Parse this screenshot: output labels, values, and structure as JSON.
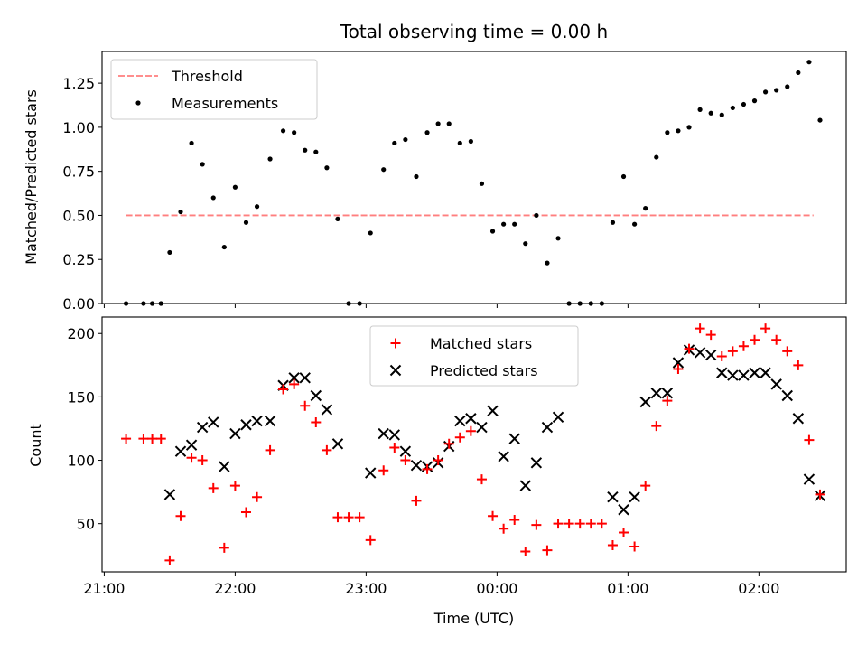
{
  "chart_data": [
    {
      "type": "scatter",
      "title": "Total observing time = 0.00 h",
      "xlabel": "",
      "ylabel": "Matched/Predicted stars",
      "ylim": [
        0,
        1.43
      ],
      "yticks": [
        "0.00",
        "0.25",
        "0.50",
        "0.75",
        "1.00",
        "1.25"
      ],
      "yticks_values": [
        0,
        0.25,
        0.5,
        0.75,
        1.0,
        1.25
      ],
      "xlim": [
        "21:00",
        "02:40"
      ],
      "legend_position": "upper left",
      "threshold": {
        "name": "Threshold",
        "y": 0.5,
        "x_range": [
          "21:10",
          "02:25"
        ],
        "color": "#ff7f7f",
        "style": "dashed"
      },
      "series": [
        {
          "name": "Measurements",
          "color": "#000000",
          "points": [
            [
              "21:10",
              0.0
            ],
            [
              "21:18",
              0.0
            ],
            [
              "21:22",
              0.0
            ],
            [
              "21:26",
              0.0
            ],
            [
              "21:30",
              0.29
            ],
            [
              "21:35",
              0.52
            ],
            [
              "21:40",
              0.91
            ],
            [
              "21:45",
              0.79
            ],
            [
              "21:50",
              0.6
            ],
            [
              "21:55",
              0.32
            ],
            [
              "22:00",
              0.66
            ],
            [
              "22:05",
              0.46
            ],
            [
              "22:10",
              0.55
            ],
            [
              "22:16",
              0.82
            ],
            [
              "22:22",
              0.98
            ],
            [
              "22:27",
              0.97
            ],
            [
              "22:32",
              0.87
            ],
            [
              "22:37",
              0.86
            ],
            [
              "22:42",
              0.77
            ],
            [
              "22:47",
              0.48
            ],
            [
              "22:52",
              0.0
            ],
            [
              "22:57",
              0.0
            ],
            [
              "23:02",
              0.4
            ],
            [
              "23:08",
              0.76
            ],
            [
              "23:13",
              0.91
            ],
            [
              "23:18",
              0.93
            ],
            [
              "23:23",
              0.72
            ],
            [
              "23:28",
              0.97
            ],
            [
              "23:33",
              1.02
            ],
            [
              "23:38",
              1.02
            ],
            [
              "23:43",
              0.91
            ],
            [
              "23:48",
              0.92
            ],
            [
              "23:53",
              0.68
            ],
            [
              "23:58",
              0.41
            ],
            [
              "00:03",
              0.45
            ],
            [
              "00:08",
              0.45
            ],
            [
              "00:13",
              0.34
            ],
            [
              "00:18",
              0.5
            ],
            [
              "00:23",
              0.23
            ],
            [
              "00:28",
              0.37
            ],
            [
              "00:33",
              0.0
            ],
            [
              "00:38",
              0.0
            ],
            [
              "00:43",
              0.0
            ],
            [
              "00:48",
              0.0
            ],
            [
              "00:53",
              0.46
            ],
            [
              "00:58",
              0.72
            ],
            [
              "01:03",
              0.45
            ],
            [
              "01:08",
              0.54
            ],
            [
              "01:13",
              0.83
            ],
            [
              "01:18",
              0.97
            ],
            [
              "01:23",
              0.98
            ],
            [
              "01:28",
              1.0
            ],
            [
              "01:33",
              1.1
            ],
            [
              "01:38",
              1.08
            ],
            [
              "01:43",
              1.07
            ],
            [
              "01:48",
              1.11
            ],
            [
              "01:53",
              1.13
            ],
            [
              "01:58",
              1.15
            ],
            [
              "02:03",
              1.2
            ],
            [
              "02:08",
              1.21
            ],
            [
              "02:13",
              1.23
            ],
            [
              "02:18",
              1.31
            ],
            [
              "02:23",
              1.37
            ],
            [
              "02:28",
              1.04
            ]
          ]
        }
      ]
    },
    {
      "type": "scatter",
      "xlabel": "Time (UTC)",
      "ylabel": "Count",
      "ylim": [
        12,
        213
      ],
      "yticks": [
        "50",
        "100",
        "150",
        "200"
      ],
      "yticks_values": [
        50,
        100,
        150,
        200
      ],
      "xlim": [
        "21:00",
        "02:40"
      ],
      "xticks": [
        "21:00",
        "22:00",
        "23:00",
        "00:00",
        "01:00",
        "02:00"
      ],
      "legend_position": "upper center",
      "series": [
        {
          "name": "Matched stars",
          "marker": "plus",
          "color": "#ff0000",
          "points": [
            [
              "21:10",
              117
            ],
            [
              "21:18",
              117
            ],
            [
              "21:22",
              117
            ],
            [
              "21:26",
              117
            ],
            [
              "21:30",
              21
            ],
            [
              "21:35",
              56
            ],
            [
              "21:40",
              102
            ],
            [
              "21:45",
              100
            ],
            [
              "21:50",
              78
            ],
            [
              "21:55",
              31
            ],
            [
              "22:00",
              80
            ],
            [
              "22:05",
              59
            ],
            [
              "22:10",
              71
            ],
            [
              "22:16",
              108
            ],
            [
              "22:22",
              156
            ],
            [
              "22:27",
              160
            ],
            [
              "22:32",
              143
            ],
            [
              "22:37",
              130
            ],
            [
              "22:42",
              108
            ],
            [
              "22:47",
              55
            ],
            [
              "22:52",
              55
            ],
            [
              "22:57",
              55
            ],
            [
              "23:02",
              37
            ],
            [
              "23:08",
              92
            ],
            [
              "23:13",
              110
            ],
            [
              "23:18",
              100
            ],
            [
              "23:23",
              68
            ],
            [
              "23:28",
              93
            ],
            [
              "23:33",
              100
            ],
            [
              "23:38",
              113
            ],
            [
              "23:43",
              118
            ],
            [
              "23:48",
              123
            ],
            [
              "23:53",
              85
            ],
            [
              "23:58",
              56
            ],
            [
              "00:03",
              46
            ],
            [
              "00:08",
              53
            ],
            [
              "00:13",
              28
            ],
            [
              "00:18",
              49
            ],
            [
              "00:23",
              29
            ],
            [
              "00:28",
              50
            ],
            [
              "00:33",
              50
            ],
            [
              "00:38",
              50
            ],
            [
              "00:43",
              50
            ],
            [
              "00:48",
              50
            ],
            [
              "00:53",
              33
            ],
            [
              "00:58",
              43
            ],
            [
              "01:03",
              32
            ],
            [
              "01:08",
              80
            ],
            [
              "01:13",
              127
            ],
            [
              "01:18",
              147
            ],
            [
              "01:23",
              172
            ],
            [
              "01:28",
              188
            ],
            [
              "01:33",
              204
            ],
            [
              "01:38",
              199
            ],
            [
              "01:43",
              182
            ],
            [
              "01:48",
              186
            ],
            [
              "01:53",
              190
            ],
            [
              "01:58",
              195
            ],
            [
              "02:03",
              204
            ],
            [
              "02:08",
              195
            ],
            [
              "02:13",
              186
            ],
            [
              "02:18",
              175
            ],
            [
              "02:23",
              116
            ],
            [
              "02:28",
              73
            ]
          ]
        },
        {
          "name": "Predicted stars",
          "marker": "x",
          "color": "#000000",
          "points": [
            [
              "21:30",
              73
            ],
            [
              "21:35",
              107
            ],
            [
              "21:40",
              112
            ],
            [
              "21:45",
              126
            ],
            [
              "21:50",
              130
            ],
            [
              "21:55",
              95
            ],
            [
              "22:00",
              121
            ],
            [
              "22:05",
              128
            ],
            [
              "22:10",
              131
            ],
            [
              "22:16",
              131
            ],
            [
              "22:22",
              159
            ],
            [
              "22:27",
              165
            ],
            [
              "22:32",
              165
            ],
            [
              "22:37",
              151
            ],
            [
              "22:42",
              140
            ],
            [
              "22:47",
              113
            ],
            [
              "23:02",
              90
            ],
            [
              "23:08",
              121
            ],
            [
              "23:13",
              120
            ],
            [
              "23:18",
              107
            ],
            [
              "23:23",
              96
            ],
            [
              "23:28",
              95
            ],
            [
              "23:33",
              98
            ],
            [
              "23:38",
              111
            ],
            [
              "23:43",
              131
            ],
            [
              "23:48",
              133
            ],
            [
              "23:53",
              126
            ],
            [
              "23:58",
              139
            ],
            [
              "00:03",
              103
            ],
            [
              "00:08",
              117
            ],
            [
              "00:13",
              80
            ],
            [
              "00:18",
              98
            ],
            [
              "00:23",
              126
            ],
            [
              "00:28",
              134
            ],
            [
              "00:53",
              71
            ],
            [
              "00:58",
              61
            ],
            [
              "01:03",
              71
            ],
            [
              "01:08",
              146
            ],
            [
              "01:13",
              153
            ],
            [
              "01:18",
              153
            ],
            [
              "01:23",
              177
            ],
            [
              "01:28",
              187
            ],
            [
              "01:33",
              185
            ],
            [
              "01:38",
              183
            ],
            [
              "01:43",
              169
            ],
            [
              "01:48",
              167
            ],
            [
              "01:53",
              167
            ],
            [
              "01:58",
              169
            ],
            [
              "02:03",
              169
            ],
            [
              "02:08",
              160
            ],
            [
              "02:13",
              151
            ],
            [
              "02:18",
              133
            ],
            [
              "02:23",
              85
            ],
            [
              "02:28",
              72
            ]
          ]
        }
      ]
    }
  ]
}
